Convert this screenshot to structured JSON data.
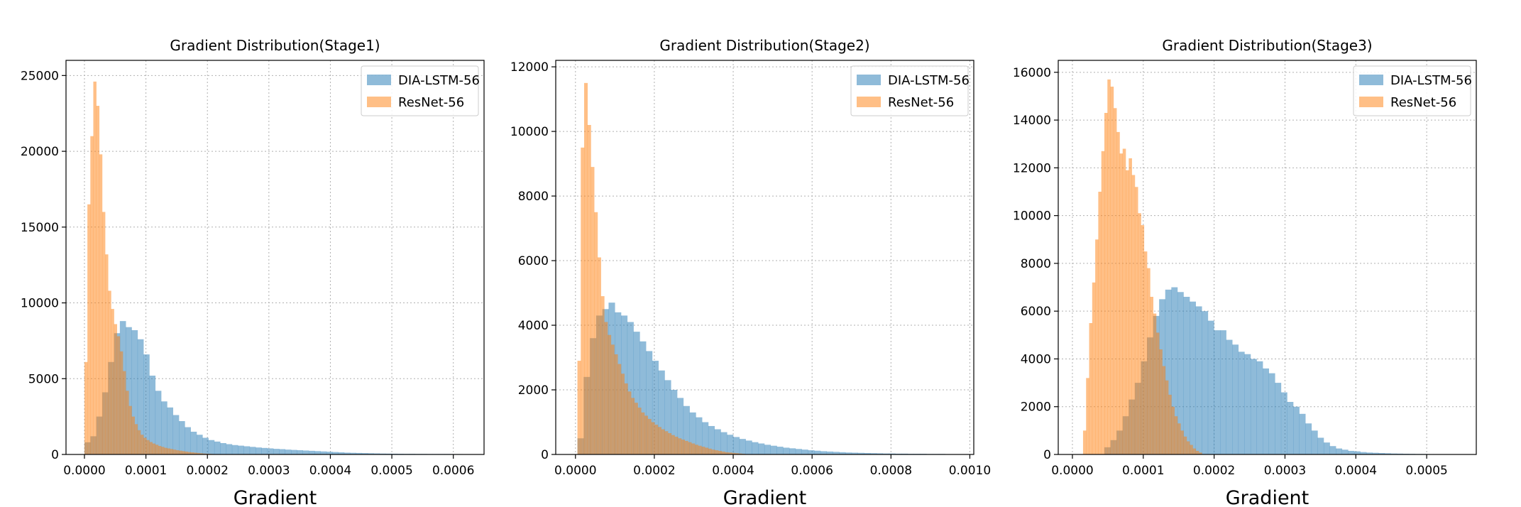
{
  "chart_data": [
    {
      "type": "histogram",
      "title": "Gradient Distribution(Stage1)",
      "xlabel": "Gradient",
      "ylabel": "",
      "xlim": [
        -3e-05,
        0.00065
      ],
      "ylim": [
        0,
        26000
      ],
      "xticks": [
        0.0,
        0.0001,
        0.0002,
        0.0003,
        0.0004,
        0.0005,
        0.0006
      ],
      "xtick_labels": [
        "0.0000",
        "0.0001",
        "0.0002",
        "0.0003",
        "0.0004",
        "0.0005",
        "0.0006"
      ],
      "yticks": [
        0,
        5000,
        10000,
        15000,
        20000,
        25000
      ],
      "ytick_labels": [
        "0",
        "5000",
        "10000",
        "15000",
        "20000",
        "25000"
      ],
      "grid": true,
      "legend_position": "top-right",
      "series": [
        {
          "name": "DIA-LSTM-56",
          "color": "#1f77b4",
          "alpha": 0.5,
          "bin_start": 0.0,
          "bin_width": 9.6e-06,
          "values": [
            800,
            1200,
            2500,
            4100,
            6100,
            8000,
            8800,
            8400,
            8200,
            7600,
            6600,
            5200,
            4200,
            3500,
            3100,
            2600,
            2200,
            1800,
            1500,
            1300,
            1100,
            950,
            850,
            750,
            680,
            620,
            580,
            540,
            500,
            460,
            430,
            400,
            370,
            350,
            320,
            300,
            280,
            260,
            240,
            220,
            200,
            180,
            160,
            140,
            120,
            110,
            100,
            90,
            80,
            70,
            60,
            55,
            50,
            45,
            40,
            40,
            35,
            35,
            30,
            30,
            30,
            30,
            25,
            25,
            20
          ]
        },
        {
          "name": "ResNet-56",
          "color": "#ff7f0e",
          "alpha": 0.5,
          "bin_start": 0.0,
          "bin_width": 4.8e-06,
          "values": [
            6100,
            16500,
            21000,
            24600,
            23000,
            19800,
            16000,
            13200,
            10800,
            9600,
            8600,
            7800,
            6800,
            5500,
            4200,
            3200,
            2500,
            2000,
            1600,
            1300,
            1100,
            950,
            820,
            720,
            640,
            560,
            500,
            440,
            400,
            360,
            320,
            280,
            250,
            220,
            190,
            160,
            140,
            120,
            100,
            80,
            60,
            50,
            40,
            30,
            20
          ]
        }
      ]
    },
    {
      "type": "histogram",
      "title": "Gradient Distribution(Stage2)",
      "xlabel": "Gradient",
      "ylabel": "",
      "xlim": [
        -5e-05,
        0.00101
      ],
      "ylim": [
        0,
        12200
      ],
      "xticks": [
        0.0,
        0.0002,
        0.0004,
        0.0006,
        0.0008,
        0.001
      ],
      "xtick_labels": [
        "0.0000",
        "0.0002",
        "0.0004",
        "0.0006",
        "0.0008",
        "0.0010"
      ],
      "yticks": [
        0,
        2000,
        4000,
        6000,
        8000,
        10000,
        12000
      ],
      "ytick_labels": [
        "0",
        "2000",
        "4000",
        "6000",
        "8000",
        "10000",
        "12000"
      ],
      "grid": true,
      "legend_position": "top-right",
      "series": [
        {
          "name": "DIA-LSTM-56",
          "color": "#1f77b4",
          "alpha": 0.5,
          "bin_start": 5e-06,
          "bin_width": 1.58e-05,
          "values": [
            500,
            2400,
            3600,
            4300,
            4500,
            4700,
            4400,
            4300,
            4100,
            3800,
            3500,
            3200,
            2900,
            2600,
            2300,
            2000,
            1750,
            1500,
            1300,
            1150,
            1000,
            880,
            780,
            690,
            610,
            540,
            480,
            430,
            380,
            340,
            300,
            270,
            240,
            210,
            190,
            170,
            150,
            130,
            115,
            100,
            90,
            80,
            70,
            60,
            55,
            50,
            45,
            40,
            35,
            30,
            30,
            25,
            25,
            20,
            20,
            20,
            15,
            15,
            15,
            10
          ]
        },
        {
          "name": "ResNet-56",
          "color": "#ff7f0e",
          "alpha": 0.5,
          "bin_start": 5e-06,
          "bin_width": 8.5e-06,
          "values": [
            2900,
            9500,
            11500,
            10200,
            8900,
            7500,
            6100,
            4900,
            4100,
            3700,
            3400,
            3100,
            2800,
            2500,
            2200,
            1950,
            1750,
            1600,
            1450,
            1300,
            1200,
            1100,
            1000,
            920,
            850,
            780,
            720,
            660,
            600,
            550,
            500,
            460,
            420,
            380,
            340,
            300,
            270,
            240,
            210,
            180,
            150,
            130,
            110,
            90,
            70,
            60,
            50,
            40,
            30,
            20
          ]
        }
      ]
    },
    {
      "type": "histogram",
      "title": "Gradient Distribution(Stage3)",
      "xlabel": "Gradient",
      "ylabel": "",
      "xlim": [
        -2e-05,
        0.00057
      ],
      "ylim": [
        0,
        16500
      ],
      "xticks": [
        0.0,
        0.0001,
        0.0002,
        0.0003,
        0.0004,
        0.0005
      ],
      "xtick_labels": [
        "0.0000",
        "0.0001",
        "0.0002",
        "0.0003",
        "0.0004",
        "0.0005"
      ],
      "yticks": [
        0,
        2000,
        4000,
        6000,
        8000,
        10000,
        12000,
        14000,
        16000
      ],
      "ytick_labels": [
        "0",
        "2000",
        "4000",
        "6000",
        "8000",
        "10000",
        "12000",
        "14000",
        "16000"
      ],
      "grid": true,
      "legend_position": "top-right",
      "series": [
        {
          "name": "DIA-LSTM-56",
          "color": "#1f77b4",
          "alpha": 0.5,
          "bin_start": 4.5e-05,
          "bin_width": 8.6e-06,
          "values": [
            300,
            600,
            1000,
            1600,
            2300,
            3000,
            3900,
            4900,
            5800,
            6500,
            6900,
            7000,
            6800,
            6600,
            6400,
            6200,
            6000,
            5600,
            5200,
            5200,
            4800,
            4600,
            4300,
            4200,
            4000,
            3900,
            3600,
            3400,
            3000,
            2600,
            2200,
            2000,
            1700,
            1300,
            1000,
            700,
            500,
            350,
            250,
            200,
            150,
            130,
            100,
            80,
            70,
            60,
            50,
            40,
            35,
            30,
            25,
            20,
            20,
            15,
            15,
            10,
            10,
            10
          ]
        },
        {
          "name": "ResNet-56",
          "color": "#ff7f0e",
          "alpha": 0.5,
          "bin_start": 1.5e-05,
          "bin_width": 4.3e-06,
          "values": [
            1000,
            3200,
            5500,
            7200,
            9000,
            11000,
            12700,
            14300,
            15700,
            15400,
            14500,
            13500,
            12600,
            12800,
            11900,
            12400,
            11700,
            11200,
            10100,
            9600,
            8500,
            7800,
            6600,
            5900,
            5100,
            4400,
            3700,
            3100,
            2500,
            2000,
            1600,
            1300,
            1000,
            750,
            550,
            400,
            250,
            150,
            80
          ]
        }
      ]
    }
  ]
}
